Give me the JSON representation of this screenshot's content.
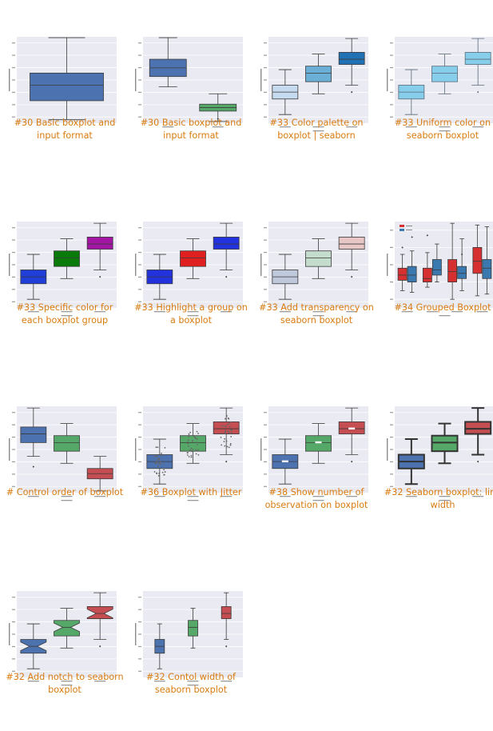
{
  "colors": {
    "caption": "#d97c10",
    "plot_bg": "#eaeaf2",
    "default_blue": "#4c72b0",
    "green": "#55a868",
    "red": "#c44e52"
  },
  "gallery": [
    {
      "caption": "#30 Basic boxplot and input format",
      "plot": "single"
    },
    {
      "caption": "#30 Basic boxplot and input format",
      "plot": "two_vars"
    },
    {
      "caption": "#33 Color palette on boxplot | seaborn",
      "plot": "palette_blues"
    },
    {
      "caption": "#33 Uniform color on seaborn boxplot",
      "plot": "uniform_skyblue"
    },
    {
      "caption": "#33 Specific color for each boxplot group",
      "plot": "specific_colors"
    },
    {
      "caption": "#33 Highlight a group on a boxplot",
      "plot": "highlight_red"
    },
    {
      "caption": "#33 Add transparency on seaborn boxplot",
      "plot": "transparent"
    },
    {
      "caption": "#34 Grouped Boxplot",
      "plot": "grouped"
    },
    {
      "caption": "# Control order of boxplot",
      "plot": "order"
    },
    {
      "caption": "#36 Boxplot with Jitter",
      "plot": "jitter"
    },
    {
      "caption": "#38 Show number of observation on boxplot",
      "plot": "nobs"
    },
    {
      "caption": "#32 Seaborn boxplot: line width",
      "plot": "linewidth"
    },
    {
      "caption": "#32 Add notch to seaborn boxplot",
      "plot": "notch"
    },
    {
      "caption": "#32 Contol width of seaborn boxplot",
      "plot": "width"
    }
  ]
}
